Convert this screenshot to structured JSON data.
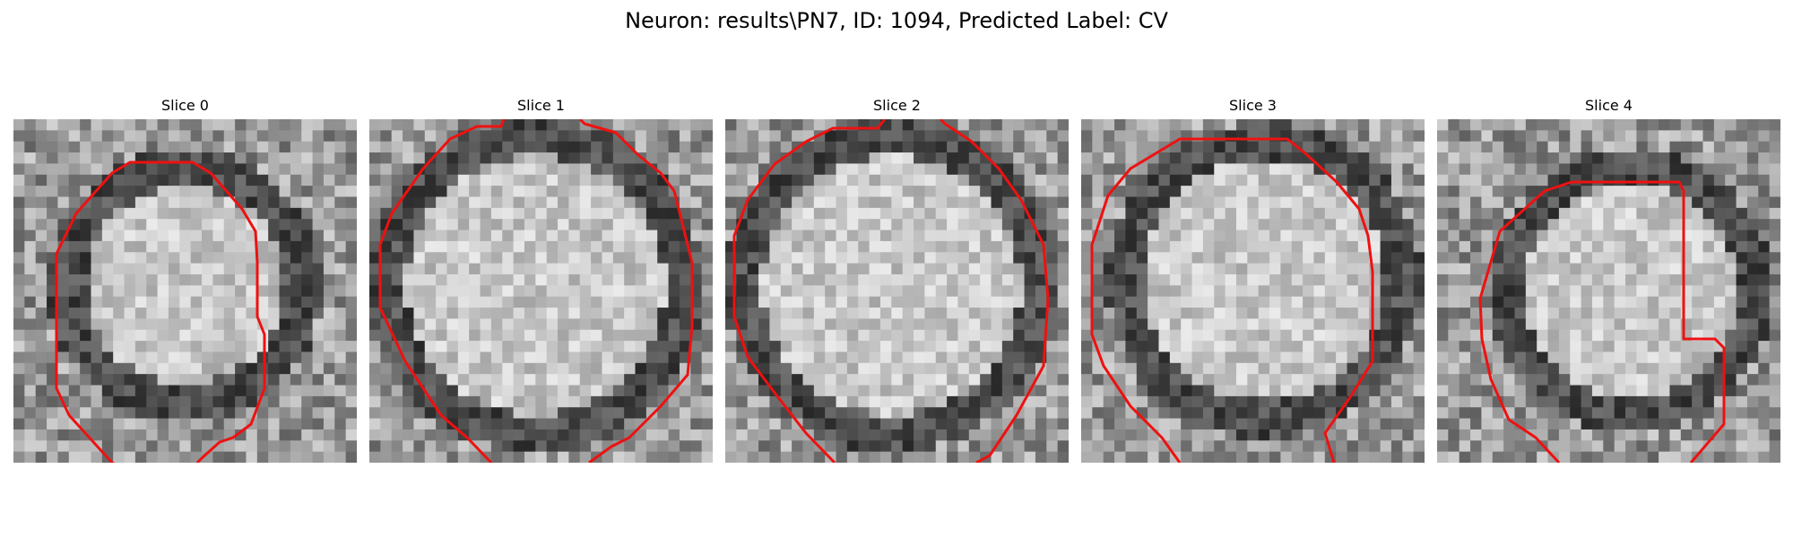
{
  "figure": {
    "title": "Neuron: results\\PN7, ID: 1094, Predicted Label: CV"
  },
  "panels": [
    {
      "title": "Slice 0"
    },
    {
      "title": "Slice 1"
    },
    {
      "title": "Slice 2"
    },
    {
      "title": "Slice 3"
    },
    {
      "title": "Slice 4"
    }
  ],
  "colors": {
    "contour": "#ee1111",
    "background": "#ffffff"
  }
}
